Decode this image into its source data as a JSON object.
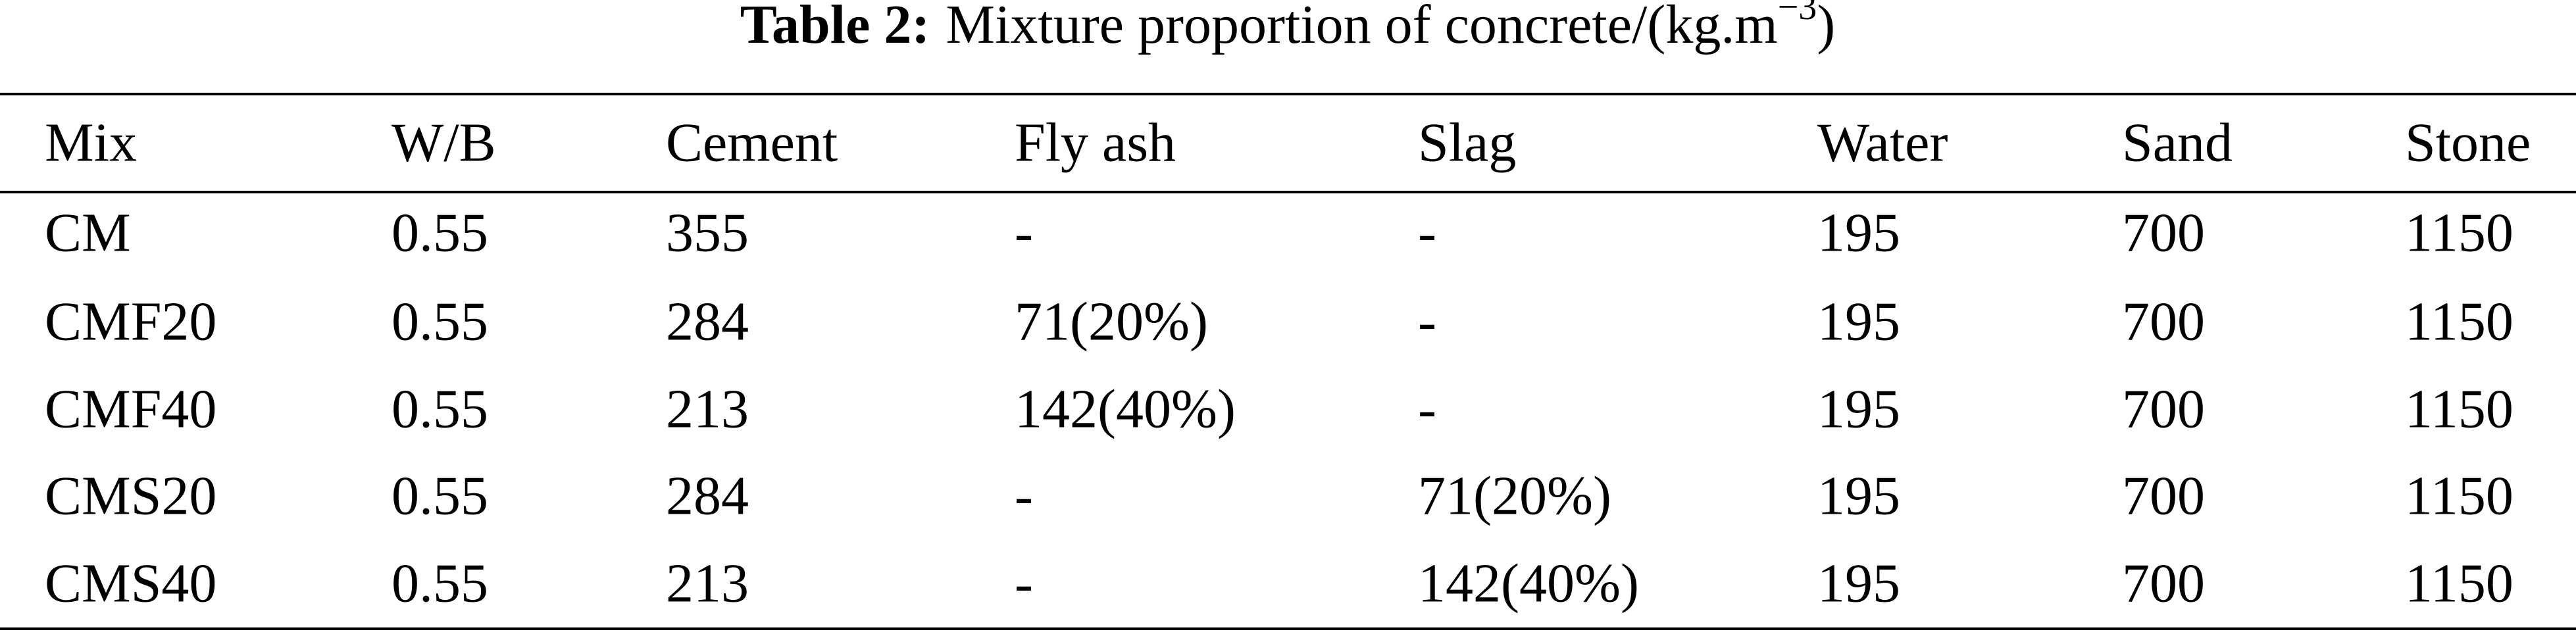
{
  "header": {
    "label": "Table 2:",
    "title": "Mixture proportion of concrete/(kg.m",
    "superscript": "−3",
    "title_end": ")"
  },
  "table": {
    "columns": [
      "Mix",
      "W/B",
      "Cement",
      "Fly ash",
      "Slag",
      "Water",
      "Sand",
      "Stone"
    ],
    "rows": [
      [
        "CM",
        "0.55",
        "355",
        "-",
        "-",
        "195",
        "700",
        "1150"
      ],
      [
        "CMF20",
        "0.55",
        "284",
        "71(20%)",
        "-",
        "195",
        "700",
        "1150"
      ],
      [
        "CMF40",
        "0.55",
        "213",
        "142(40%)",
        "-",
        "195",
        "700",
        "1150"
      ],
      [
        "CMS20",
        "0.55",
        "284",
        "-",
        "71(20%)",
        "195",
        "700",
        "1150"
      ],
      [
        "CMS40",
        "0.55",
        "213",
        "-",
        "142(40%)",
        "195",
        "700",
        "1150"
      ]
    ]
  }
}
